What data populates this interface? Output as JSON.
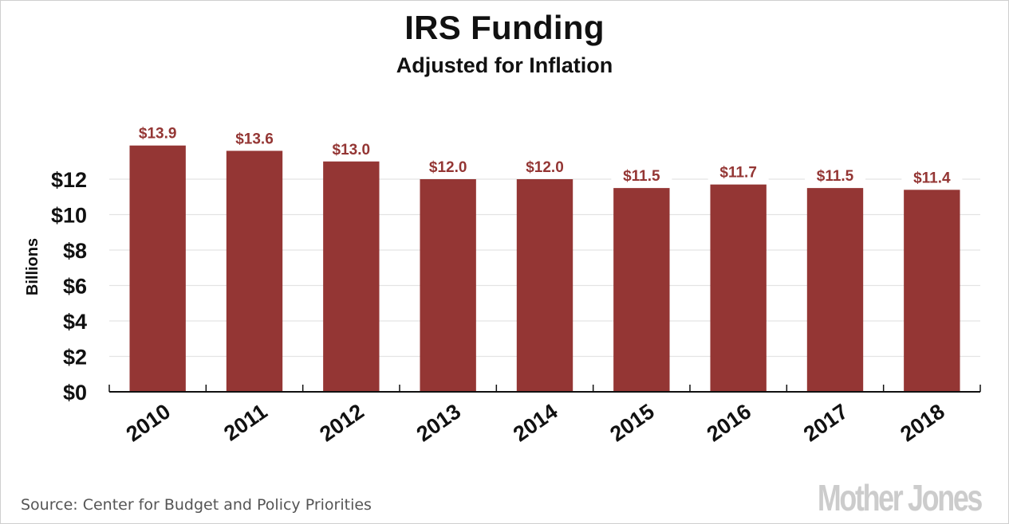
{
  "header": {
    "title": "IRS Funding",
    "subtitle": "Adjusted for Inflation"
  },
  "colors": {
    "bar": "#943634",
    "data_label": "#943634",
    "gridline": "#e3e3e3",
    "axis": "#111111",
    "logo": "#cccccc",
    "source_text": "#555555"
  },
  "chart_data": {
    "type": "bar",
    "title": "IRS Funding",
    "subtitle": "Adjusted for Inflation",
    "xlabel": "",
    "ylabel": "Billions",
    "categories": [
      "2010",
      "2011",
      "2012",
      "2013",
      "2014",
      "2015",
      "2016",
      "2017",
      "2018"
    ],
    "values": [
      13.9,
      13.6,
      13.0,
      12.0,
      12.0,
      11.5,
      11.7,
      11.5,
      11.4
    ],
    "data_labels": [
      "$13.9",
      "$13.6",
      "$13.0",
      "$12.0",
      "$12.0",
      "$11.5",
      "$11.7",
      "$11.5",
      "$11.4"
    ],
    "ylim": [
      0,
      12
    ],
    "yticks": [
      0,
      2,
      4,
      6,
      8,
      10,
      12
    ],
    "ytick_labels": [
      "$0",
      "$2",
      "$4",
      "$6",
      "$8",
      "$10",
      "$12"
    ],
    "xtick_rotation_deg": -35,
    "grid": true,
    "legend": "none"
  },
  "footer": {
    "source": "Source: Center for Budget and Policy Priorities",
    "logo": "Mother Jones"
  }
}
